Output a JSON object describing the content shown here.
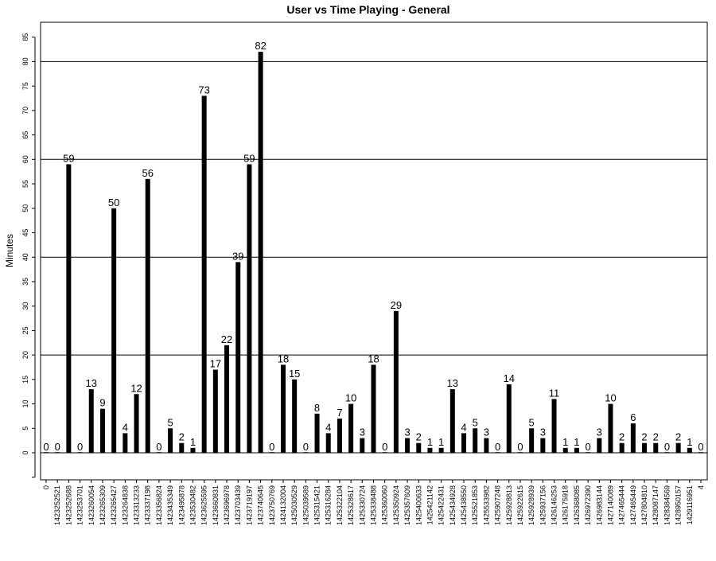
{
  "chart_data": {
    "type": "bar",
    "title": "User vs Time Playing - General",
    "xlabel": "",
    "ylabel": "Minutes",
    "ylim": [
      -5,
      85
    ],
    "yticks": [
      -5,
      0,
      5,
      10,
      15,
      20,
      25,
      30,
      35,
      40,
      45,
      50,
      55,
      60,
      65,
      70,
      75,
      80,
      85
    ],
    "ytick_labels": [
      "",
      "0",
      "5",
      "10",
      "15",
      "20",
      "25",
      "30",
      "35",
      "40",
      "45",
      "50",
      "55",
      "60",
      "65",
      "70",
      "75",
      "80",
      "85"
    ],
    "reference_lines": [
      0,
      20,
      40,
      60,
      80
    ],
    "grid": false,
    "bar_color": "#000000",
    "categories": [
      "0",
      "1423252521",
      "1423252688",
      "1423253701",
      "1423260054",
      "1423265309",
      "1423265427",
      "1423264838",
      "1423313233",
      "1423337198",
      "1423356824",
      "1423435349",
      "1423495878",
      "1423530482",
      "1423625595",
      "1423660831",
      "1423696978",
      "1423703439",
      "1423719197",
      "1423740645",
      "1423750769",
      "1424132004",
      "1425030529",
      "1425039589",
      "1425315421",
      "1425316284",
      "1425322104",
      "1425328617",
      "1425330724",
      "1425338488",
      "1425360060",
      "1425350924",
      "1425357609",
      "1425400633",
      "1425421142",
      "1425422431",
      "1425434928",
      "1425438550",
      "1425521853",
      "1425533982",
      "1425907248",
      "1425928813",
      "1425922615",
      "1425928939",
      "1425937156",
      "1426146253",
      "1426175918",
      "1426368085",
      "1426972390",
      "1426983144",
      "1427140089",
      "1427465444",
      "1427465449",
      "1427804810",
      "1428087147",
      "1428384569",
      "1428950157",
      "1429116951",
      "4"
    ],
    "values": [
      0,
      0,
      59,
      0,
      13,
      9,
      50,
      4,
      12,
      56,
      0,
      5,
      2,
      1,
      73,
      17,
      22,
      39,
      59,
      82,
      0,
      18,
      15,
      0,
      8,
      4,
      7,
      10,
      3,
      18,
      0,
      29,
      3,
      2,
      1,
      1,
      13,
      4,
      5,
      3,
      0,
      14,
      0,
      5,
      3,
      11,
      1,
      1,
      0,
      3,
      10,
      2,
      6,
      2,
      2,
      0,
      2,
      1,
      0
    ]
  }
}
